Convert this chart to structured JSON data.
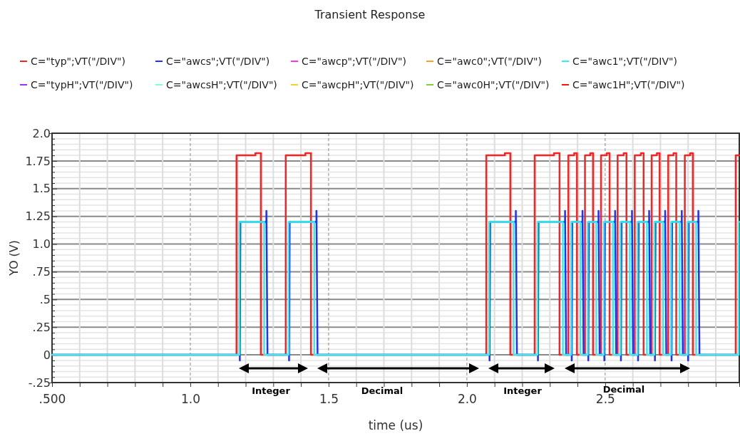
{
  "chart_data": {
    "type": "line",
    "title": "Transient Response",
    "xlabel": "time (us)",
    "ylabel": "YO (V)",
    "legend": "top",
    "grid": true,
    "xlim": [
      0.5,
      2.985
    ],
    "xticks": [
      {
        "value": 0.5,
        "label": ".500"
      },
      {
        "value": 0.6,
        "label": null
      },
      {
        "value": 0.7,
        "label": null
      },
      {
        "value": 0.8,
        "label": null
      },
      {
        "value": 0.9,
        "label": null
      },
      {
        "value": 1.0,
        "label": "1.0"
      },
      {
        "value": 1.1,
        "label": null
      },
      {
        "value": 1.2,
        "label": null
      },
      {
        "value": 1.3,
        "label": null
      },
      {
        "value": 1.4,
        "label": null
      },
      {
        "value": 1.5,
        "label": "1.5"
      },
      {
        "value": 1.6,
        "label": null
      },
      {
        "value": 1.7,
        "label": null
      },
      {
        "value": 1.8,
        "label": null
      },
      {
        "value": 1.9,
        "label": null
      },
      {
        "value": 2.0,
        "label": "2.0"
      },
      {
        "value": 2.1,
        "label": null
      },
      {
        "value": 2.2,
        "label": null
      },
      {
        "value": 2.3,
        "label": null
      },
      {
        "value": 2.4,
        "label": null
      },
      {
        "value": 2.5,
        "label": "2.5"
      },
      {
        "value": 2.6,
        "label": null
      },
      {
        "value": 2.7,
        "label": null
      },
      {
        "value": 2.8,
        "label": null
      },
      {
        "value": 2.9,
        "label": null
      }
    ],
    "ylim": [
      -0.25,
      2.0
    ],
    "yticks": [
      {
        "value": -0.25,
        "label": "-.25"
      },
      {
        "value": -0.2,
        "label": null
      },
      {
        "value": -0.15,
        "label": null
      },
      {
        "value": -0.1,
        "label": null
      },
      {
        "value": -0.05,
        "label": null
      },
      {
        "value": 0,
        "label": "0"
      },
      {
        "value": 0.05,
        "label": null
      },
      {
        "value": 0.1,
        "label": null
      },
      {
        "value": 0.15,
        "label": null
      },
      {
        "value": 0.2,
        "label": null
      },
      {
        "value": 0.25,
        "label": ".25"
      },
      {
        "value": 0.3,
        "label": null
      },
      {
        "value": 0.35,
        "label": null
      },
      {
        "value": 0.4,
        "label": null
      },
      {
        "value": 0.45,
        "label": null
      },
      {
        "value": 0.5,
        "label": ".5"
      },
      {
        "value": 0.55,
        "label": null
      },
      {
        "value": 0.6,
        "label": null
      },
      {
        "value": 0.65,
        "label": null
      },
      {
        "value": 0.7,
        "label": null
      },
      {
        "value": 0.75,
        "label": ".75"
      },
      {
        "value": 0.8,
        "label": null
      },
      {
        "value": 0.85,
        "label": null
      },
      {
        "value": 0.9,
        "label": null
      },
      {
        "value": 0.95,
        "label": null
      },
      {
        "value": 1.0,
        "label": "1.0"
      },
      {
        "value": 1.05,
        "label": null
      },
      {
        "value": 1.1,
        "label": null
      },
      {
        "value": 1.15,
        "label": null
      },
      {
        "value": 1.2,
        "label": null
      },
      {
        "value": 1.25,
        "label": "1.25"
      },
      {
        "value": 1.3,
        "label": null
      },
      {
        "value": 1.35,
        "label": null
      },
      {
        "value": 1.4,
        "label": null
      },
      {
        "value": 1.45,
        "label": null
      },
      {
        "value": 1.5,
        "label": "1.5"
      },
      {
        "value": 1.55,
        "label": null
      },
      {
        "value": 1.6,
        "label": null
      },
      {
        "value": 1.65,
        "label": null
      },
      {
        "value": 1.7,
        "label": null
      },
      {
        "value": 1.75,
        "label": "1.75"
      },
      {
        "value": 1.8,
        "label": null
      },
      {
        "value": 1.85,
        "label": null
      },
      {
        "value": 1.9,
        "label": null
      },
      {
        "value": 1.95,
        "label": null
      },
      {
        "value": 2.0,
        "label": "2.0"
      }
    ],
    "annotations": [
      "Integer",
      "Decimal",
      "Integer",
      "Decimal"
    ],
    "x": [
      0.5,
      1.167,
      1.167,
      1.235,
      1.235,
      1.255,
      1.255,
      1.345,
      1.345,
      1.416,
      1.416,
      1.436,
      1.436,
      2.07,
      2.07,
      2.137,
      2.137,
      2.157,
      2.157,
      2.245,
      2.245,
      2.315,
      2.315,
      2.335,
      2.335,
      2.367,
      2.367,
      2.388,
      2.388,
      2.398,
      2.398,
      2.427,
      2.427,
      2.446,
      2.446,
      2.456,
      2.456,
      2.485,
      2.485,
      2.506,
      2.506,
      2.516,
      2.516,
      2.545,
      2.545,
      2.567,
      2.567,
      2.577,
      2.577,
      2.607,
      2.607,
      2.629,
      2.629,
      2.639,
      2.639,
      2.668,
      2.668,
      2.687,
      2.687,
      2.697,
      2.697,
      2.728,
      2.728,
      2.747,
      2.747,
      2.757,
      2.757,
      2.788,
      2.788,
      2.807,
      2.807,
      2.817,
      2.817,
      2.972,
      2.972,
      2.985
    ],
    "series": [
      {
        "name": "C=\"typ\";VT(\"/DIV\")",
        "color": "#ff2020",
        "values": [
          0,
          0,
          1.8,
          1.8,
          1.82,
          1.82,
          0,
          0,
          1.8,
          1.8,
          1.82,
          1.82,
          0,
          0,
          1.8,
          1.8,
          1.82,
          1.82,
          0,
          0,
          1.8,
          1.8,
          1.82,
          1.82,
          0,
          0,
          1.8,
          1.8,
          1.82,
          1.82,
          0,
          0,
          1.8,
          1.8,
          1.82,
          1.82,
          0,
          0,
          1.8,
          1.8,
          1.82,
          1.82,
          0,
          0,
          1.8,
          1.8,
          1.82,
          1.82,
          0,
          0,
          1.8,
          1.8,
          1.82,
          1.82,
          0,
          0,
          1.8,
          1.8,
          1.82,
          1.82,
          0,
          0,
          1.8,
          1.8,
          1.82,
          1.82,
          0,
          0,
          1.8,
          1.8,
          1.82,
          1.82,
          0,
          0,
          1.8,
          1.8
        ]
      },
      {
        "name": "C=\"awcs\";VT(\"/DIV\")",
        "color": "#2030ff",
        "x": [
          0.5,
          1.179,
          1.179,
          1.181,
          1.275,
          1.275,
          1.279,
          1.357,
          1.357,
          1.359,
          1.456,
          1.456,
          1.46,
          2.082,
          2.082,
          2.084,
          2.177,
          2.177,
          2.181,
          2.257,
          2.257,
          2.259,
          2.355,
          2.355,
          2.359,
          2.379,
          2.379,
          2.381,
          2.418,
          2.418,
          2.422,
          2.439,
          2.439,
          2.441,
          2.476,
          2.476,
          2.48,
          2.497,
          2.497,
          2.499,
          2.536,
          2.536,
          2.54,
          2.557,
          2.557,
          2.559,
          2.597,
          2.597,
          2.601,
          2.619,
          2.619,
          2.621,
          2.659,
          2.659,
          2.663,
          2.68,
          2.68,
          2.682,
          2.717,
          2.717,
          2.721,
          2.74,
          2.74,
          2.742,
          2.777,
          2.777,
          2.781,
          2.8,
          2.8,
          2.802,
          2.837,
          2.837,
          2.841,
          2.984,
          2.984,
          2.985
        ],
        "values": [
          0,
          0,
          -0.05,
          1.2,
          1.2,
          1.3,
          0,
          0,
          -0.05,
          1.2,
          1.2,
          1.3,
          0,
          0,
          -0.05,
          1.2,
          1.2,
          1.3,
          0,
          0,
          -0.05,
          1.2,
          1.2,
          1.3,
          0,
          0,
          -0.05,
          1.2,
          1.2,
          1.3,
          0,
          0,
          -0.05,
          1.2,
          1.2,
          1.3,
          0,
          0,
          -0.05,
          1.2,
          1.2,
          1.3,
          0,
          0,
          -0.05,
          1.2,
          1.2,
          1.3,
          0,
          0,
          -0.05,
          1.2,
          1.2,
          1.3,
          0,
          0,
          -0.05,
          1.2,
          1.2,
          1.3,
          0,
          0,
          -0.05,
          1.2,
          1.2,
          1.3,
          0,
          0,
          -0.05,
          1.2,
          1.2,
          1.3,
          0,
          0,
          1.1,
          1.1
        ]
      },
      {
        "name": "C=\"awcp\";VT(\"/DIV\")",
        "color": "#ff30ff",
        "values": [
          null,
          null,
          null,
          null,
          null,
          null,
          null,
          null,
          null,
          null,
          null,
          null,
          null,
          null,
          null,
          null,
          null,
          null,
          null,
          null,
          null,
          null,
          null,
          null,
          null,
          null,
          null,
          null,
          null,
          null,
          null,
          null,
          null,
          null,
          null,
          null,
          null,
          null,
          null,
          null,
          null,
          null,
          null,
          null,
          null,
          null,
          null,
          null,
          null,
          null,
          null,
          null,
          null,
          null,
          null,
          null,
          null,
          null,
          null,
          null,
          null,
          null,
          null,
          null,
          null,
          null,
          null,
          null,
          null,
          null,
          null,
          null,
          null,
          null,
          null,
          null
        ]
      },
      {
        "name": "C=\"awc0\";VT(\"/DIV\")",
        "color": "#ffa020",
        "values": [
          null,
          null,
          null,
          null,
          null,
          null,
          null,
          null,
          null,
          null,
          null,
          null,
          null,
          null,
          null,
          null,
          null,
          null,
          null,
          null,
          null,
          null,
          null,
          null,
          null,
          null,
          null,
          null,
          null,
          null,
          null,
          null,
          null,
          null,
          null,
          null,
          null,
          null,
          null,
          null,
          null,
          null,
          null,
          null,
          null,
          null,
          null,
          null,
          null,
          null,
          null,
          null,
          null,
          null,
          null,
          null,
          null,
          null,
          null,
          null,
          null,
          null,
          null,
          null,
          null,
          null,
          null,
          null,
          null,
          null,
          null,
          null,
          null,
          null,
          null,
          null
        ]
      },
      {
        "name": "C=\"awc1\";VT(\"/DIV\")",
        "color": "#30f0f0",
        "x": [
          0.5,
          1.177,
          1.177,
          1.267,
          1.267,
          1.355,
          1.355,
          1.448,
          1.448,
          2.08,
          2.08,
          2.169,
          2.169,
          2.255,
          2.255,
          2.347,
          2.347,
          2.377,
          2.377,
          2.41,
          2.41,
          2.437,
          2.437,
          2.468,
          2.468,
          2.495,
          2.495,
          2.528,
          2.528,
          2.555,
          2.555,
          2.589,
          2.589,
          2.617,
          2.617,
          2.651,
          2.651,
          2.678,
          2.678,
          2.709,
          2.709,
          2.738,
          2.738,
          2.769,
          2.769,
          2.798,
          2.798,
          2.829,
          2.829,
          2.982,
          2.982,
          2.985
        ],
        "values": [
          0,
          0,
          1.2,
          1.2,
          0,
          0,
          1.2,
          1.2,
          0,
          0,
          1.2,
          1.2,
          0,
          0,
          1.2,
          1.2,
          0,
          0,
          1.2,
          1.2,
          0,
          0,
          1.2,
          1.2,
          0,
          0,
          1.2,
          1.2,
          0,
          0,
          1.2,
          1.2,
          0,
          0,
          1.2,
          1.2,
          0,
          0,
          1.2,
          1.2,
          0,
          0,
          1.2,
          1.2,
          0,
          0,
          1.2,
          1.2,
          0,
          0,
          1.2,
          1.2
        ]
      },
      {
        "name": "C=\"typH\";VT(\"/DIV\")",
        "color": "#a030ff",
        "values": [
          null,
          null,
          null,
          null,
          null,
          null,
          null,
          null,
          null,
          null,
          null,
          null,
          null,
          null,
          null,
          null,
          null,
          null,
          null,
          null,
          null,
          null,
          null,
          null,
          null,
          null,
          null,
          null,
          null,
          null,
          null,
          null,
          null,
          null,
          null,
          null,
          null,
          null,
          null,
          null,
          null,
          null,
          null,
          null,
          null,
          null,
          null,
          null,
          null,
          null,
          null,
          null,
          null,
          null,
          null,
          null,
          null,
          null,
          null,
          null,
          null,
          null,
          null,
          null,
          null,
          null,
          null,
          null,
          null,
          null,
          null,
          null,
          null,
          null,
          null,
          null
        ]
      },
      {
        "name": "C=\"awcsH\";VT(\"/DIV\")",
        "color": "#80ffd0",
        "values": [
          null,
          null,
          null,
          null,
          null,
          null,
          null,
          null,
          null,
          null,
          null,
          null,
          null,
          null,
          null,
          null,
          null,
          null,
          null,
          null,
          null,
          null,
          null,
          null,
          null,
          null,
          null,
          null,
          null,
          null,
          null,
          null,
          null,
          null,
          null,
          null,
          null,
          null,
          null,
          null,
          null,
          null,
          null,
          null,
          null,
          null,
          null,
          null,
          null,
          null,
          null,
          null,
          null,
          null,
          null,
          null,
          null,
          null,
          null,
          null,
          null,
          null,
          null,
          null,
          null,
          null,
          null,
          null,
          null,
          null,
          null,
          null,
          null,
          null,
          null,
          null
        ]
      },
      {
        "name": "C=\"awcpH\";VT(\"/DIV\")",
        "color": "#ffd020",
        "values": [
          null,
          null,
          null,
          null,
          null,
          null,
          null,
          null,
          null,
          null,
          null,
          null,
          null,
          null,
          null,
          null,
          null,
          null,
          null,
          null,
          null,
          null,
          null,
          null,
          null,
          null,
          null,
          null,
          null,
          null,
          null,
          null,
          null,
          null,
          null,
          null,
          null,
          null,
          null,
          null,
          null,
          null,
          null,
          null,
          null,
          null,
          null,
          null,
          null,
          null,
          null,
          null,
          null,
          null,
          null,
          null,
          null,
          null,
          null,
          null,
          null,
          null,
          null,
          null,
          null,
          null,
          null,
          null,
          null,
          null,
          null,
          null,
          null,
          null,
          null,
          null
        ]
      },
      {
        "name": "C=\"awc0H\";VT(\"/DIV\")",
        "color": "#80d040",
        "values": [
          null,
          null,
          null,
          null,
          null,
          null,
          null,
          null,
          null,
          null,
          null,
          null,
          null,
          null,
          null,
          null,
          null,
          null,
          null,
          null,
          null,
          null,
          null,
          null,
          null,
          null,
          null,
          null,
          null,
          null,
          null,
          null,
          null,
          null,
          null,
          null,
          null,
          null,
          null,
          null,
          null,
          null,
          null,
          null,
          null,
          null,
          null,
          null,
          null,
          null,
          null,
          null,
          null,
          null,
          null,
          null,
          null,
          null,
          null,
          null,
          null,
          null,
          null,
          null,
          null,
          null,
          null,
          null,
          null,
          null,
          null,
          null,
          null,
          null,
          null,
          null
        ]
      },
      {
        "name": "C=\"awc1H\";VT(\"/DIV\")",
        "color": "#ff1010",
        "values": [
          null,
          null,
          null,
          null,
          null,
          null,
          null,
          null,
          null,
          null,
          null,
          null,
          null,
          null,
          null,
          null,
          null,
          null,
          null,
          null,
          null,
          null,
          null,
          null,
          null,
          null,
          null,
          null,
          null,
          null,
          null,
          null,
          null,
          null,
          null,
          null,
          null,
          null,
          null,
          null,
          null,
          null,
          null,
          null,
          null,
          null,
          null,
          null,
          null,
          null,
          null,
          null,
          null,
          null,
          null,
          null,
          null,
          null,
          null,
          null,
          null,
          null,
          null,
          null,
          null,
          null,
          null,
          null,
          null,
          null,
          null,
          null,
          null,
          null,
          null,
          null
        ]
      }
    ]
  }
}
